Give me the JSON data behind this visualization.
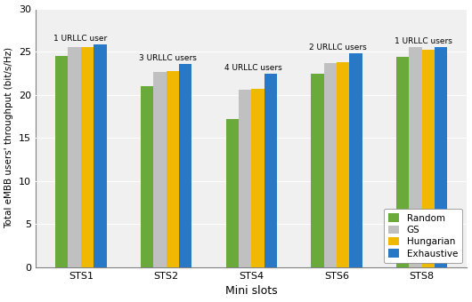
{
  "categories": [
    "STS1",
    "STS2",
    "STS4",
    "STS6",
    "STS8"
  ],
  "urllc_labels": [
    "1 URLLC user",
    "3 URLLC users",
    "4 URLLC users",
    "2 URLLC users",
    "1 URLLC users"
  ],
  "series": {
    "Random": [
      24.5,
      21.0,
      17.2,
      22.4,
      24.4
    ],
    "GS": [
      25.5,
      22.6,
      20.6,
      23.7,
      25.5
    ],
    "Hungarian": [
      25.5,
      22.7,
      20.7,
      23.8,
      25.2
    ],
    "Exhaustive": [
      25.8,
      23.6,
      22.4,
      24.8,
      25.5
    ]
  },
  "colors": {
    "Random": "#6aaa3a",
    "GS": "#c0c0c0",
    "Hungarian": "#f0b800",
    "Exhaustive": "#2878c8"
  },
  "ylabel": "Total eMBB users' throughput (bit/s/Hz)",
  "xlabel": "Mini slots",
  "ylim": [
    0,
    30
  ],
  "yticks": [
    0,
    5,
    10,
    15,
    20,
    25,
    30
  ],
  "legend_loc": "lower right",
  "bar_width": 0.15,
  "title": "",
  "fig_width": 5.3,
  "fig_height": 3.4,
  "dpi": 100
}
